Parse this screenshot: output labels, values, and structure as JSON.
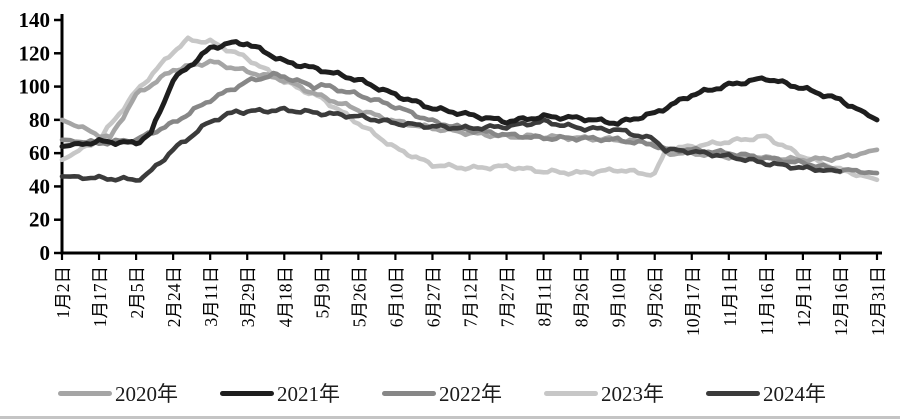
{
  "chart_data": {
    "type": "line",
    "title": "",
    "xlabel": "",
    "ylabel": "",
    "ylim": [
      0,
      140
    ],
    "y_ticks": [
      0,
      20,
      40,
      60,
      80,
      100,
      120,
      140
    ],
    "grid": false,
    "legend_position": "bottom",
    "categories": [
      "1月2日",
      "1月17日",
      "2月5日",
      "2月24日",
      "3月11日",
      "3月29日",
      "4月18日",
      "5月9日",
      "5月26日",
      "6月10日",
      "6月27日",
      "7月12日",
      "7月27日",
      "8月11日",
      "8月26日",
      "9月10日",
      "9月26日",
      "10月17日",
      "11月1日",
      "11月16日",
      "12月1日",
      "12月16日",
      "12月31日"
    ],
    "series": [
      {
        "name": "2020年",
        "color": "#a5a5a5",
        "points": [
          [
            0,
            80
          ],
          [
            1,
            71
          ],
          [
            1.3,
            69
          ],
          [
            2,
            95
          ],
          [
            3,
            110
          ],
          [
            4,
            115
          ],
          [
            5,
            109
          ],
          [
            6,
            104
          ],
          [
            7,
            94
          ],
          [
            8,
            86
          ],
          [
            9,
            79
          ],
          [
            10,
            75
          ],
          [
            11,
            72
          ],
          [
            12,
            70
          ],
          [
            13,
            70
          ],
          [
            14,
            69
          ],
          [
            15,
            68
          ],
          [
            16,
            66
          ],
          [
            16.3,
            60
          ],
          [
            17,
            60
          ],
          [
            18,
            58
          ],
          [
            19,
            57
          ],
          [
            20,
            56
          ],
          [
            21,
            57
          ],
          [
            22,
            62
          ]
        ]
      },
      {
        "name": "2021年",
        "color": "#1e1e1e",
        "points": [
          [
            0,
            64
          ],
          [
            1,
            67
          ],
          [
            2,
            66
          ],
          [
            2.4,
            72
          ],
          [
            3,
            104
          ],
          [
            4,
            123
          ],
          [
            4.5,
            126
          ],
          [
            5,
            126
          ],
          [
            6,
            115
          ],
          [
            7,
            110
          ],
          [
            8,
            104
          ],
          [
            9,
            95
          ],
          [
            10,
            87
          ],
          [
            11,
            83
          ],
          [
            12,
            79
          ],
          [
            13,
            82
          ],
          [
            14,
            81
          ],
          [
            15,
            78
          ],
          [
            16,
            84
          ],
          [
            17,
            95
          ],
          [
            18,
            101
          ],
          [
            19,
            105
          ],
          [
            20,
            99
          ],
          [
            21,
            92
          ],
          [
            22,
            80
          ]
        ]
      },
      {
        "name": "2022年",
        "color": "#878787",
        "points": [
          [
            0,
            68
          ],
          [
            1,
            66
          ],
          [
            2,
            68
          ],
          [
            3,
            78
          ],
          [
            4,
            92
          ],
          [
            5,
            103
          ],
          [
            5.7,
            107
          ],
          [
            6,
            106
          ],
          [
            6.8,
            100
          ],
          [
            7,
            101
          ],
          [
            8,
            95
          ],
          [
            9,
            88
          ],
          [
            10,
            79
          ],
          [
            11,
            74
          ],
          [
            12,
            71
          ],
          [
            13,
            69
          ],
          [
            14,
            69
          ],
          [
            15,
            68
          ],
          [
            16,
            65
          ],
          [
            16.3,
            62
          ],
          [
            17,
            62
          ],
          [
            18,
            60
          ],
          [
            19,
            57
          ],
          [
            20,
            54
          ],
          [
            21,
            50
          ],
          [
            22,
            48
          ]
        ]
      },
      {
        "name": "2023年",
        "color": "#c7c7c7",
        "points": [
          [
            0,
            56
          ],
          [
            1,
            68
          ],
          [
            2,
            97
          ],
          [
            3,
            121
          ],
          [
            3.4,
            128
          ],
          [
            4,
            127
          ],
          [
            5,
            117
          ],
          [
            6,
            103
          ],
          [
            7,
            93
          ],
          [
            8,
            78
          ],
          [
            9,
            63
          ],
          [
            10,
            53
          ],
          [
            11,
            51
          ],
          [
            12,
            52
          ],
          [
            13,
            49
          ],
          [
            14,
            48
          ],
          [
            15,
            50
          ],
          [
            16,
            47
          ],
          [
            16.3,
            62
          ],
          [
            17,
            64
          ],
          [
            18,
            67
          ],
          [
            19,
            70
          ],
          [
            20,
            58
          ],
          [
            21,
            50
          ],
          [
            22,
            44
          ]
        ]
      },
      {
        "name": "2024年",
        "color": "#3b3b3b",
        "points": [
          [
            0,
            46
          ],
          [
            1,
            45
          ],
          [
            2,
            44
          ],
          [
            2.3,
            47
          ],
          [
            3,
            62
          ],
          [
            4,
            79
          ],
          [
            4.7,
            85
          ],
          [
            5,
            85
          ],
          [
            6,
            86
          ],
          [
            7,
            84
          ],
          [
            8,
            82
          ],
          [
            9,
            78
          ],
          [
            10,
            76
          ],
          [
            11,
            75
          ],
          [
            12,
            76
          ],
          [
            13,
            79
          ],
          [
            14,
            75
          ],
          [
            15,
            74
          ],
          [
            16,
            68
          ],
          [
            16.3,
            62
          ],
          [
            17,
            61
          ],
          [
            18,
            58
          ],
          [
            19,
            54
          ],
          [
            20,
            51
          ],
          [
            21,
            49
          ]
        ]
      }
    ]
  }
}
